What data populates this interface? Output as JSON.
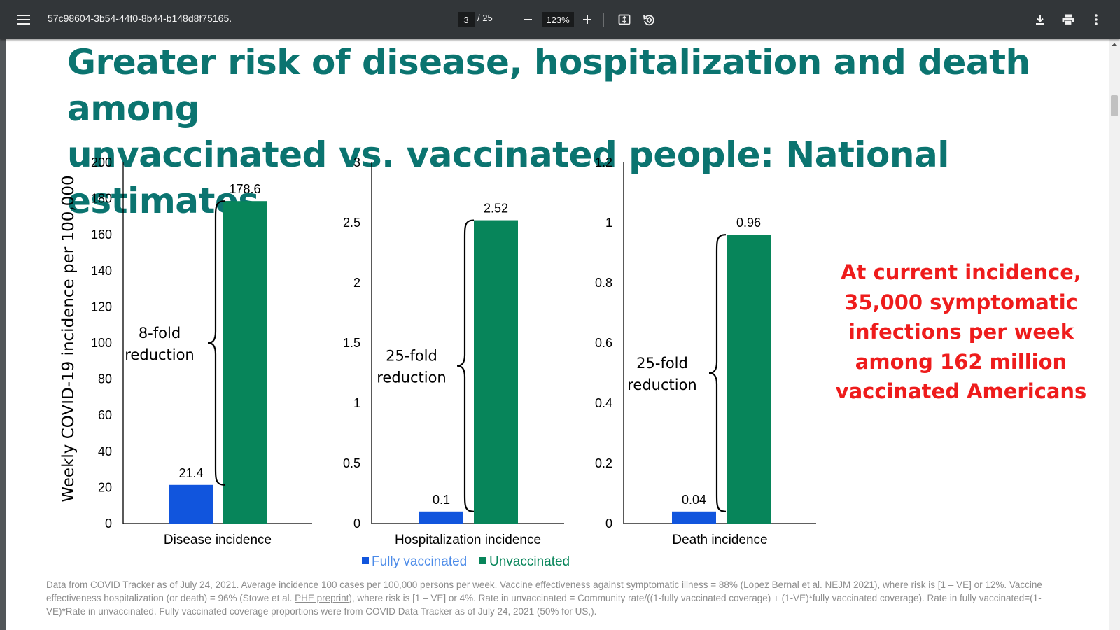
{
  "toolbar": {
    "doc_title": "57c98604-3b54-44f0-8b44-b148d8f75165.",
    "page_current": "3",
    "page_total": "/ 25",
    "zoom": "123%",
    "icons": [
      "menu-icon",
      "zoom-out-icon",
      "zoom-in-icon",
      "fit-page-icon",
      "rotate-icon",
      "download-icon",
      "print-icon",
      "more-options-icon"
    ]
  },
  "slide": {
    "title_line1": "Greater risk of disease, hospitalization and death among",
    "title_line2": "unvaccinated vs. vaccinated people: National estimates",
    "side_note": [
      "At current incidence,",
      "35,000 symptomatic",
      "infections per week",
      "among 162 million",
      "vaccinated Americans"
    ],
    "footnote": {
      "p1": "Data from COVID Tracker as of July 24, 2021. Average incidence 100 cases per 100,000 persons per week. Vaccine effectiveness against symptomatic illness = 88% (Lopez Bernal et al. ",
      "link1": "NEJM 2021",
      "p2": "), where risk is [1 – VE] or 12%. Vaccine effectiveness hospitalization (or death) = 96% (Stowe et al. ",
      "link2": "PHE preprint",
      "p3": "), where risk is [1 – VE] or 4%.  Rate in unvaccinated = Community rate/((1-fully vaccinated coverage) + (1-VE)*fully vaccinated coverage). Rate in fully vaccinated=(1-VE)*Rate in unvaccinated. Fully vaccinated coverage proportions were from COVID Data Tracker as of July 24, 2021 (50% for US,)."
    }
  },
  "colors": {
    "title": "#0b7470",
    "fully_vaccinated": "#1155dd",
    "unvaccinated": "#07855a",
    "side_note": "#ee1c1c",
    "legend_fully": "#4a8ae8",
    "legend_unvax": "#07855a"
  },
  "chart_data": {
    "type": "bar",
    "ylabel": "Weekly COVID-19 incidence per 100,000",
    "legend": [
      {
        "name": "Fully vaccinated",
        "color": "#1155dd"
      },
      {
        "name": "Unvaccinated",
        "color": "#07855a"
      }
    ],
    "legend_position": "bottom",
    "panels": [
      {
        "xlabel": "Disease incidence",
        "ylim": [
          0,
          200
        ],
        "yticks": [
          "0",
          "20",
          "40",
          "60",
          "80",
          "100",
          "120",
          "140",
          "160",
          "180",
          "200"
        ],
        "series": [
          {
            "name": "Fully vaccinated",
            "value": 21.4,
            "label": "21.4"
          },
          {
            "name": "Unvaccinated",
            "value": 178.6,
            "label": "178.6"
          }
        ],
        "annotation": [
          "8-fold",
          "reduction"
        ]
      },
      {
        "xlabel": "Hospitalization incidence",
        "ylim": [
          0,
          3
        ],
        "yticks": [
          "0",
          "0.5",
          "1",
          "1.5",
          "2",
          "2.5",
          "3"
        ],
        "series": [
          {
            "name": "Fully vaccinated",
            "value": 0.1,
            "label": "0.1"
          },
          {
            "name": "Unvaccinated",
            "value": 2.52,
            "label": "2.52"
          }
        ],
        "annotation": [
          "25-fold",
          "reduction"
        ]
      },
      {
        "xlabel": "Death incidence",
        "ylim": [
          0,
          1.2
        ],
        "yticks": [
          "0",
          "0.2",
          "0.4",
          "0.6",
          "0.8",
          "1",
          "1.2"
        ],
        "series": [
          {
            "name": "Fully vaccinated",
            "value": 0.04,
            "label": "0.04"
          },
          {
            "name": "Unvaccinated",
            "value": 0.96,
            "label": "0.96"
          }
        ],
        "annotation": [
          "25-fold",
          "reduction"
        ]
      }
    ]
  }
}
